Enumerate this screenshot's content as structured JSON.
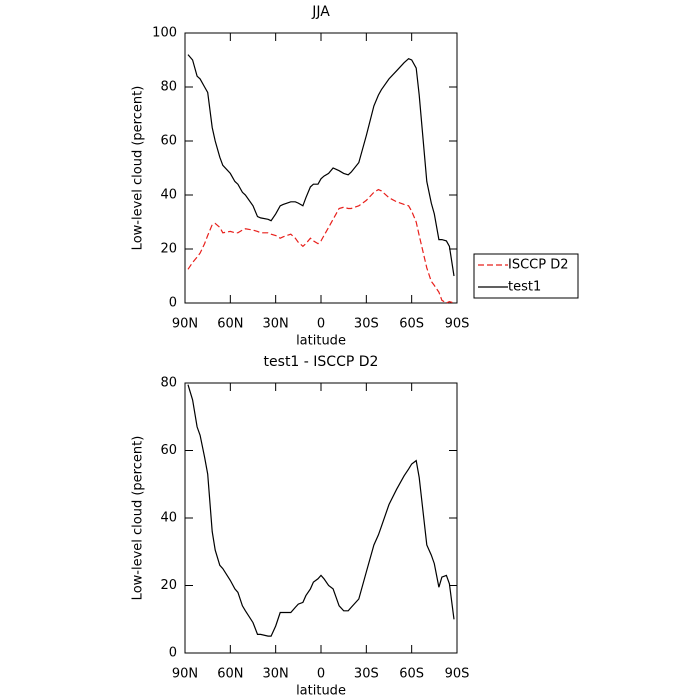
{
  "chart_data": [
    {
      "type": "line",
      "title": "JJA",
      "xlabel": "latitude",
      "ylabel": "Low-level cloud (percent)",
      "x": [
        88,
        85,
        82,
        80,
        77,
        75,
        72,
        70,
        67,
        65,
        60,
        57,
        55,
        52,
        50,
        45,
        42,
        40,
        35,
        33,
        30,
        27,
        25,
        20,
        17,
        15,
        12,
        10,
        7,
        5,
        2,
        0,
        -2,
        -5,
        -8,
        -10,
        -12,
        -15,
        -18,
        -20,
        -25,
        -30,
        -35,
        -38,
        -40,
        -45,
        -50,
        -55,
        -58,
        -60,
        -63,
        -65,
        -70,
        -73,
        -75,
        -78,
        -80,
        -83,
        -85,
        -88
      ],
      "xlim": [
        90,
        -90
      ],
      "xticks": [
        {
          "value": 90,
          "label": "90N"
        },
        {
          "value": 60,
          "label": "60N"
        },
        {
          "value": 30,
          "label": "30N"
        },
        0,
        {
          "value": -30,
          "label": "30S"
        },
        {
          "value": -60,
          "label": "60S"
        },
        {
          "value": -90,
          "label": "90S"
        }
      ],
      "ylim": [
        0,
        100
      ],
      "yticks": [
        0,
        20,
        40,
        60,
        80,
        100
      ],
      "legend": "right",
      "series": [
        {
          "name": "ISCCP D2",
          "color": "#e8201c",
          "linestyle": "dashed",
          "values": [
            12.5,
            15,
            17,
            18.5,
            22,
            25,
            29,
            29.5,
            28,
            26,
            26.5,
            26,
            26,
            27,
            27.5,
            27,
            26.5,
            26,
            26,
            25.5,
            25,
            24,
            24.5,
            25.5,
            24,
            22.5,
            21,
            22,
            24,
            23,
            22,
            23,
            25,
            28,
            31,
            33,
            35,
            35.5,
            35,
            35,
            36,
            38,
            41,
            42,
            41.5,
            39,
            37.5,
            36.5,
            36,
            34,
            30,
            25,
            13,
            8,
            6.5,
            4,
            1,
            0,
            0.5,
            0
          ]
        },
        {
          "name": "test1",
          "color": "#000000",
          "linestyle": "solid",
          "values": [
            92,
            90,
            84,
            83,
            80,
            78,
            65,
            60,
            54,
            51,
            48,
            45,
            44,
            41,
            40,
            36,
            32,
            31.5,
            31,
            30.5,
            33,
            36,
            36.5,
            37.5,
            37.5,
            37,
            36,
            39,
            43,
            44,
            44,
            46,
            47,
            48,
            50,
            49.5,
            49,
            48,
            47.5,
            48.5,
            52,
            62,
            73,
            77,
            79,
            83,
            86,
            89,
            90.5,
            90,
            87,
            77,
            45,
            37,
            33,
            23.5,
            23.5,
            23,
            21,
            10
          ]
        }
      ]
    },
    {
      "type": "line",
      "title": "test1 - ISCCP D2",
      "xlabel": "latitude",
      "ylabel": "Low-level cloud (percent)",
      "x": [
        88,
        85,
        82,
        80,
        77,
        75,
        72,
        70,
        67,
        65,
        60,
        57,
        55,
        52,
        50,
        45,
        42,
        40,
        35,
        33,
        30,
        27,
        25,
        20,
        17,
        15,
        12,
        10,
        7,
        5,
        2,
        0,
        -2,
        -5,
        -8,
        -10,
        -12,
        -15,
        -18,
        -20,
        -25,
        -30,
        -35,
        -38,
        -40,
        -45,
        -50,
        -55,
        -58,
        -60,
        -63,
        -65,
        -70,
        -73,
        -75,
        -78,
        -80,
        -83,
        -85,
        -88
      ],
      "xlim": [
        90,
        -90
      ],
      "xticks": [
        {
          "value": 90,
          "label": "90N"
        },
        {
          "value": 60,
          "label": "60N"
        },
        {
          "value": 30,
          "label": "30N"
        },
        0,
        {
          "value": -30,
          "label": "30S"
        },
        {
          "value": -60,
          "label": "60S"
        },
        {
          "value": -90,
          "label": "90S"
        }
      ],
      "ylim": [
        0,
        80
      ],
      "yticks": [
        0,
        20,
        40,
        60,
        80
      ],
      "series": [
        {
          "color": "#000000",
          "linestyle": "solid",
          "values": [
            79.5,
            75,
            67,
            64.5,
            58,
            53,
            36,
            30.5,
            26,
            25,
            21.5,
            19,
            18,
            14,
            12.5,
            9,
            5.5,
            5.5,
            5,
            5,
            8,
            12,
            12,
            12,
            13.5,
            14.5,
            15,
            17,
            19,
            21,
            22,
            23,
            22,
            20,
            19,
            16.5,
            14,
            12.5,
            12.5,
            13.5,
            16,
            24,
            32,
            35,
            37.5,
            44,
            48.5,
            52.5,
            54.5,
            56,
            57,
            52,
            32,
            29,
            26.5,
            19.5,
            22.5,
            23,
            20.5,
            10
          ]
        }
      ]
    }
  ]
}
